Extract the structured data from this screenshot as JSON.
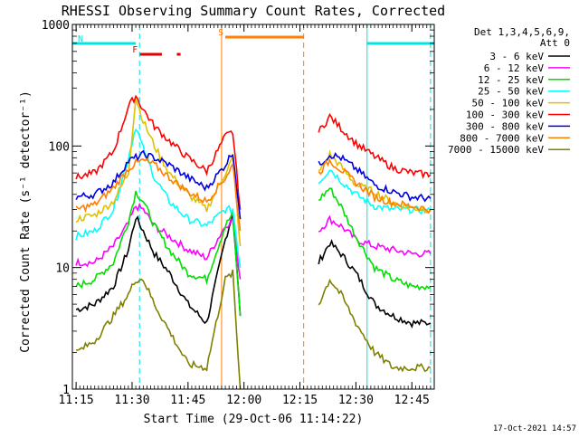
{
  "chart_data": {
    "type": "line",
    "title": "RHESSI Observing Summary Count Rates, Corrected",
    "xlabel": "Start Time (29-Oct-06 11:14:22)",
    "ylabel": "Corrected Count Rate (s⁻¹ detector⁻¹)",
    "yscale": "log",
    "ylim": [
      1,
      1000
    ],
    "xlim": [
      "11:14",
      "12:51"
    ],
    "x_ticks": [
      "11:15",
      "11:30",
      "11:45",
      "12:00",
      "12:15",
      "12:30",
      "12:45"
    ],
    "y_ticks": [
      "1",
      "10",
      "100",
      "1000"
    ],
    "timestamp": "17-Oct-2021 14:57",
    "legend": {
      "header": [
        "Det 1,3,4,5,6,9,",
        "Att 0"
      ],
      "placement": "right"
    },
    "flags": [
      {
        "label": "N",
        "color": "#00e5e5",
        "segments": [
          [
            "11:14",
            "11:31"
          ],
          [
            "12:33",
            "12:51"
          ]
        ]
      },
      {
        "label": "F",
        "color": "#e00000",
        "segments": [
          [
            "11:32",
            "11:38"
          ],
          [
            "11:42",
            "11:43"
          ]
        ]
      },
      {
        "label": "S",
        "color": "#ff7f00",
        "segments": [
          [
            "11:55",
            "12:16"
          ]
        ]
      }
    ],
    "vlines": [
      {
        "t": "11:32",
        "color": "#00e5e5",
        "style": "dashed"
      },
      {
        "t": "12:33",
        "color": "#00e5e5",
        "style": "solid"
      },
      {
        "t": "12:50",
        "color": "#00e5e5",
        "style": "dashed"
      },
      {
        "t": "11:54",
        "color": "#ff7f00",
        "style": "solid"
      },
      {
        "t": "12:16",
        "color": "#ff7f00",
        "style": "dashed"
      }
    ],
    "gaps": [
      [
        "11:59",
        "12:18"
      ]
    ],
    "x": [
      "11:15",
      "11:20",
      "11:25",
      "11:29",
      "11:31",
      "11:33",
      "11:36",
      "11:40",
      "11:45",
      "11:50",
      "11:55",
      "11:57",
      "11:59",
      "12:18",
      "12:20",
      "12:23",
      "12:26",
      "12:30",
      "12:35",
      "12:40",
      "12:45",
      "12:50"
    ],
    "series": [
      {
        "name": "3 - 6 keV",
        "color": "#000000",
        "values": [
          4.5,
          5,
          7,
          14,
          26,
          20,
          13,
          9,
          5,
          3.5,
          17,
          28,
          4,
          null,
          11,
          16,
          13,
          9,
          5,
          4,
          3.5,
          3.5
        ]
      },
      {
        "name": "6 - 12 keV",
        "color": "#ff00ff",
        "values": [
          11,
          11,
          15,
          23,
          32,
          30,
          22,
          18,
          14,
          12,
          22,
          25,
          8,
          null,
          20,
          25,
          22,
          17,
          15,
          14,
          13,
          13
        ]
      },
      {
        "name": "12 - 25 keV",
        "color": "#00e000",
        "values": [
          7,
          8,
          11,
          24,
          42,
          35,
          22,
          14,
          9,
          8,
          22,
          28,
          4,
          null,
          36,
          45,
          32,
          18,
          10,
          8,
          7,
          7
        ]
      },
      {
        "name": "25 - 50 keV",
        "color": "#00ffff",
        "values": [
          18,
          20,
          30,
          80,
          145,
          95,
          55,
          35,
          25,
          22,
          30,
          30,
          10,
          null,
          50,
          65,
          52,
          40,
          32,
          30,
          30,
          29
        ]
      },
      {
        "name": "50 - 100 keV",
        "color": "#e0c000",
        "values": [
          25,
          27,
          35,
          60,
          250,
          160,
          100,
          60,
          40,
          30,
          60,
          80,
          15,
          null,
          60,
          85,
          68,
          48,
          42,
          34,
          31,
          30
        ]
      },
      {
        "name": "100 - 300 keV",
        "color": "#ff0000",
        "values": [
          55,
          60,
          90,
          210,
          260,
          200,
          145,
          110,
          80,
          62,
          120,
          130,
          30,
          null,
          130,
          175,
          140,
          105,
          82,
          66,
          60,
          58
        ]
      },
      {
        "name": "300 - 800 keV",
        "color": "#0000e0",
        "values": [
          38,
          40,
          50,
          75,
          80,
          85,
          80,
          70,
          55,
          45,
          70,
          90,
          25,
          null,
          70,
          85,
          80,
          65,
          48,
          42,
          38,
          37
        ]
      },
      {
        "name": "800 - 7000 keV",
        "color": "#ff7f00",
        "values": [
          30,
          33,
          45,
          65,
          72,
          76,
          70,
          55,
          42,
          35,
          55,
          70,
          20,
          null,
          60,
          76,
          64,
          50,
          38,
          34,
          32,
          30
        ]
      },
      {
        "name": "7000 - 15000 keV",
        "color": "#808000",
        "values": [
          2,
          2.5,
          4,
          6,
          8,
          8,
          5,
          3,
          1.6,
          1.5,
          8,
          9,
          1,
          null,
          5,
          8,
          6,
          3.5,
          2,
          1.5,
          1.5,
          1.5
        ]
      }
    ]
  }
}
